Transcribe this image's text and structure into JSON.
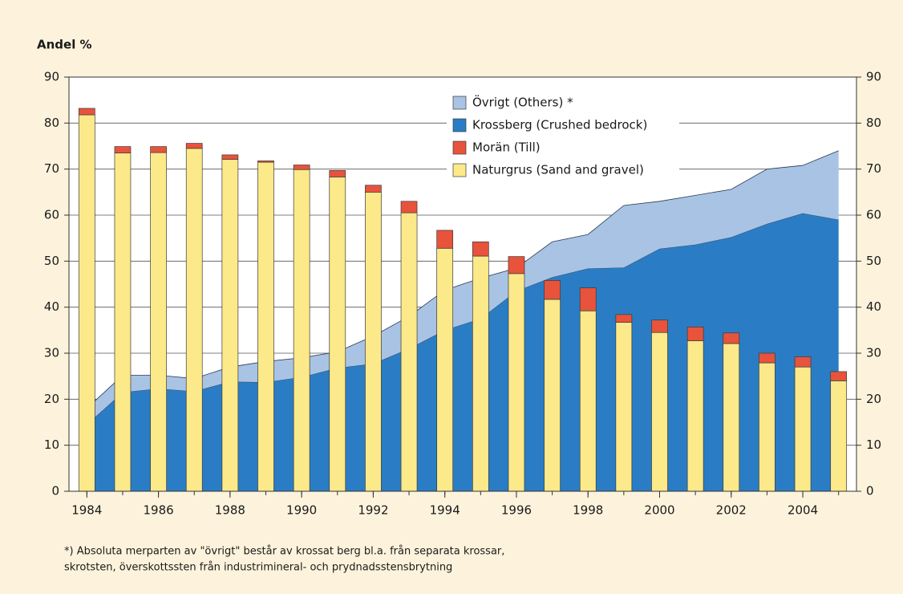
{
  "chart_data": {
    "type": "bar",
    "ylabel": "Andel %",
    "x": [
      1984,
      1985,
      1986,
      1987,
      1988,
      1989,
      1990,
      1991,
      1992,
      1993,
      1994,
      1995,
      1996,
      1997,
      1998,
      1999,
      2000,
      2001,
      2002,
      2003,
      2004,
      2005
    ],
    "xlim": [
      1983.5,
      2005.5
    ],
    "xticks": [
      1984,
      1986,
      1988,
      1990,
      1992,
      1994,
      1996,
      1998,
      2000,
      2002,
      2004
    ],
    "ylim": [
      0,
      90
    ],
    "yticks": [
      0,
      10,
      20,
      30,
      40,
      50,
      60,
      70,
      80,
      90
    ],
    "y2lim": [
      0,
      90
    ],
    "y2ticks": [
      0,
      10,
      20,
      30,
      40,
      50,
      60,
      70,
      80,
      90
    ],
    "grid": true,
    "series": [
      {
        "name": "Naturgrus (Sand and gravel)",
        "type": "bar",
        "color": "#fbe98a",
        "values": [
          81.8,
          73.5,
          73.6,
          74.5,
          72.1,
          71.5,
          69.9,
          68.3,
          65.0,
          60.5,
          52.8,
          51.1,
          47.3,
          41.7,
          39.2,
          36.7,
          34.5,
          32.7,
          32.1,
          27.9,
          27.0,
          24.0
        ]
      },
      {
        "name": "Morän (Till)",
        "type": "bar",
        "color": "#e8533c",
        "values": [
          1.4,
          1.4,
          1.3,
          1.1,
          1.0,
          0.3,
          1.0,
          1.4,
          1.5,
          2.5,
          3.9,
          3.1,
          3.7,
          4.1,
          5.0,
          1.7,
          2.7,
          3.0,
          2.3,
          2.1,
          2.2,
          2.0
        ]
      },
      {
        "name": "Krossberg (Crushed bedrock)",
        "type": "area",
        "color": "#2a7dc4",
        "values": [
          14.5,
          21.5,
          22.3,
          21.7,
          23.8,
          23.7,
          24.8,
          26.8,
          27.7,
          31.0,
          35.0,
          37.5,
          43.5,
          46.5,
          48.4,
          48.6,
          52.7,
          53.6,
          55.2,
          58.1,
          60.4,
          59.0
        ]
      },
      {
        "name": "Övrigt (Others) *",
        "type": "area",
        "color": "#a9c3e4",
        "values": [
          3.5,
          3.7,
          2.9,
          2.8,
          3.2,
          4.5,
          4.2,
          3.5,
          6.0,
          7.0,
          8.7,
          8.8,
          5.0,
          7.7,
          7.4,
          13.5,
          10.3,
          10.7,
          10.4,
          11.9,
          10.4,
          15.0
        ]
      }
    ],
    "footnote": [
      "*) Absoluta merparten av \"övrigt\" består av krossat berg bl.a. från separata krossar,",
      "skrotsten, överskottssten från industrimineral- och prydnadsstensbrytning"
    ]
  }
}
